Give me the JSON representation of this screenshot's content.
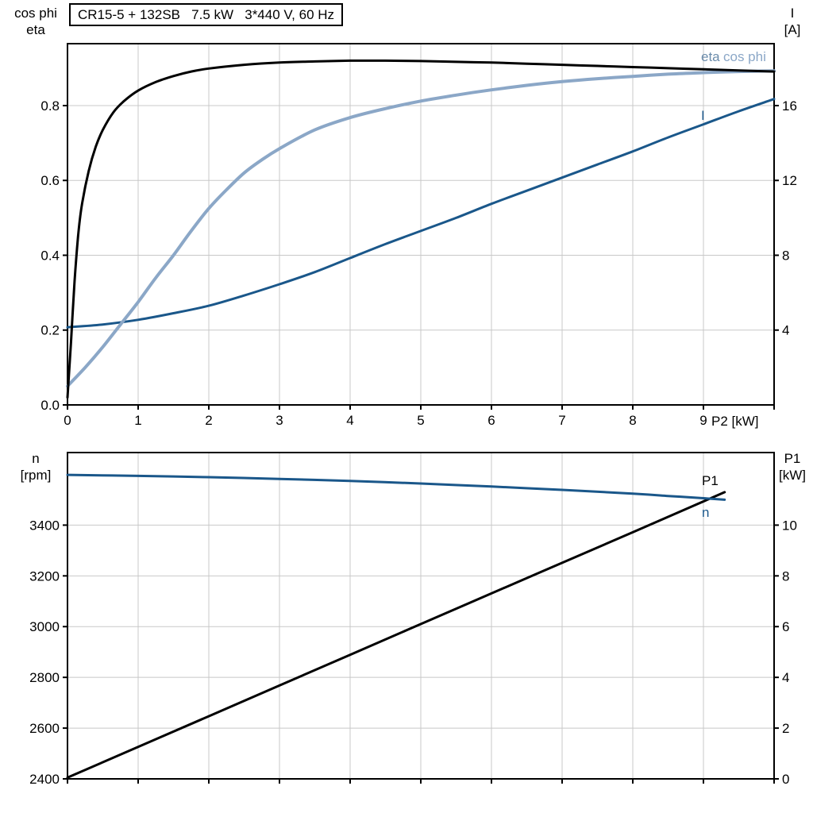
{
  "colors": {
    "black": "#000000",
    "dark_blue": "#1a578a",
    "light_blue": "#8ba7c7",
    "eta_label_blue": "#6b8cab",
    "grid": "#c8c8c8",
    "frame": "#000000"
  },
  "chart_data": [
    {
      "id": "top",
      "type": "line",
      "title": "CR15-5 + 132SB   7.5 kW   3*440 V, 60 Hz",
      "x_axis": {
        "lim": [
          0,
          10
        ],
        "ticks": [
          0,
          1,
          2,
          3,
          4,
          5,
          6,
          7,
          8,
          9,
          10
        ],
        "tick_labels": [
          "0",
          "1",
          "2",
          "3",
          "4",
          "5",
          "6",
          "7",
          "8",
          "9"
        ],
        "axis_label": "P2 [kW]"
      },
      "y_left": {
        "header": [
          "cos phi",
          "eta"
        ],
        "lim": [
          0,
          0.9655
        ],
        "ticks": [
          0,
          0.2,
          0.4,
          0.6,
          0.8
        ],
        "tick_labels": [
          "0.0",
          "0.2",
          "0.4",
          "0.6",
          "0.8"
        ]
      },
      "y_right": {
        "header": [
          "I",
          "[A]"
        ],
        "lim": [
          0,
          19.31
        ],
        "ticks": [
          4,
          8,
          12,
          16
        ],
        "tick_labels": [
          "4",
          "8",
          "12",
          "16"
        ]
      },
      "series": [
        {
          "name": "I",
          "label": "I",
          "axis": "right",
          "color": "dark_blue",
          "points": [
            [
              0,
              4.15
            ],
            [
              0.5,
              4.3
            ],
            [
              1,
              4.55
            ],
            [
              1.5,
              4.9
            ],
            [
              2,
              5.3
            ],
            [
              2.5,
              5.85
            ],
            [
              3,
              6.45
            ],
            [
              3.5,
              7.1
            ],
            [
              4,
              7.85
            ],
            [
              4.5,
              8.6
            ],
            [
              5,
              9.3
            ],
            [
              5.5,
              10.0
            ],
            [
              6,
              10.75
            ],
            [
              6.5,
              11.45
            ],
            [
              7,
              12.15
            ],
            [
              7.5,
              12.85
            ],
            [
              8,
              13.55
            ],
            [
              8.5,
              14.3
            ],
            [
              9,
              15.0
            ],
            [
              9.5,
              15.7
            ],
            [
              10,
              16.35
            ]
          ]
        },
        {
          "name": "eta",
          "label": "eta",
          "axis": "left",
          "color": "light_blue",
          "points": [
            [
              0,
              0.05
            ],
            [
              0.25,
              0.1
            ],
            [
              0.5,
              0.155
            ],
            [
              0.75,
              0.215
            ],
            [
              1,
              0.275
            ],
            [
              1.25,
              0.34
            ],
            [
              1.5,
              0.4
            ],
            [
              1.75,
              0.465
            ],
            [
              2,
              0.525
            ],
            [
              2.25,
              0.575
            ],
            [
              2.5,
              0.62
            ],
            [
              2.75,
              0.655
            ],
            [
              3,
              0.685
            ],
            [
              3.5,
              0.735
            ],
            [
              4,
              0.768
            ],
            [
              4.5,
              0.792
            ],
            [
              5,
              0.812
            ],
            [
              5.5,
              0.828
            ],
            [
              6,
              0.842
            ],
            [
              6.5,
              0.854
            ],
            [
              7,
              0.864
            ],
            [
              7.5,
              0.872
            ],
            [
              8,
              0.878
            ],
            [
              8.5,
              0.884
            ],
            [
              9,
              0.888
            ],
            [
              9.5,
              0.891
            ],
            [
              10,
              0.893
            ]
          ]
        },
        {
          "name": "cos phi",
          "label": "cos phi",
          "axis": "left",
          "color": "black",
          "points": [
            [
              0,
              0.02
            ],
            [
              0.05,
              0.17
            ],
            [
              0.1,
              0.33
            ],
            [
              0.15,
              0.45
            ],
            [
              0.2,
              0.53
            ],
            [
              0.3,
              0.625
            ],
            [
              0.4,
              0.69
            ],
            [
              0.5,
              0.735
            ],
            [
              0.65,
              0.782
            ],
            [
              0.8,
              0.812
            ],
            [
              1,
              0.84
            ],
            [
              1.25,
              0.863
            ],
            [
              1.5,
              0.879
            ],
            [
              1.75,
              0.891
            ],
            [
              2,
              0.899
            ],
            [
              2.5,
              0.909
            ],
            [
              3,
              0.915
            ],
            [
              3.5,
              0.918
            ],
            [
              4,
              0.92
            ],
            [
              4.5,
              0.92
            ],
            [
              5,
              0.919
            ],
            [
              5.5,
              0.917
            ],
            [
              6,
              0.915
            ],
            [
              6.5,
              0.912
            ],
            [
              7,
              0.909
            ],
            [
              7.5,
              0.906
            ],
            [
              8,
              0.903
            ],
            [
              8.5,
              0.9
            ],
            [
              9,
              0.897
            ],
            [
              9.5,
              0.894
            ],
            [
              10,
              0.891
            ]
          ]
        }
      ]
    },
    {
      "id": "bottom",
      "type": "line",
      "title": "",
      "x_axis": {
        "lim": [
          0,
          10
        ],
        "ticks": [
          0,
          1,
          2,
          3,
          4,
          5,
          6,
          7,
          8,
          9,
          10
        ],
        "tick_labels": [],
        "axis_label": ""
      },
      "y_left": {
        "header": [
          "n",
          "[rpm]"
        ],
        "lim": [
          2400,
          3686
        ],
        "ticks": [
          2400,
          2600,
          2800,
          3000,
          3200,
          3400
        ],
        "tick_labels": [
          "2400",
          "2600",
          "2800",
          "3000",
          "3200",
          "3400"
        ]
      },
      "y_right": {
        "header": [
          "P1",
          "[kW]"
        ],
        "lim": [
          0,
          12.86
        ],
        "ticks": [
          0,
          2,
          4,
          6,
          8,
          10
        ],
        "tick_labels": [
          "0",
          "2",
          "4",
          "6",
          "8",
          "10"
        ]
      },
      "series": [
        {
          "name": "P1",
          "label": "P1",
          "axis": "right",
          "color": "black",
          "points": [
            [
              0,
              0.05
            ],
            [
              2,
              2.47
            ],
            [
              4,
              4.89
            ],
            [
              6,
              7.31
            ],
            [
              8,
              9.72
            ],
            [
              9.3,
              11.3
            ]
          ]
        },
        {
          "name": "n",
          "label": "n",
          "axis": "left",
          "color": "dark_blue",
          "points": [
            [
              0,
              3598
            ],
            [
              1,
              3594
            ],
            [
              2,
              3589
            ],
            [
              3,
              3582
            ],
            [
              4,
              3574
            ],
            [
              5,
              3564
            ],
            [
              6,
              3552
            ],
            [
              7,
              3539
            ],
            [
              8,
              3524
            ],
            [
              8.5,
              3515
            ],
            [
              9,
              3506
            ],
            [
              9.3,
              3500
            ]
          ]
        }
      ]
    }
  ]
}
